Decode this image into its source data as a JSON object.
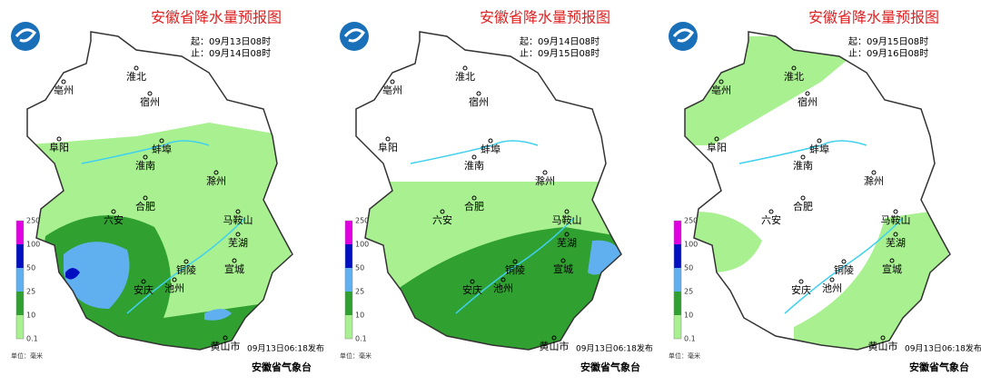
{
  "panels": [
    {
      "title": "安徽省降水量预报图",
      "start": "起：09月13日08时",
      "end": "止：09月14日08时",
      "cities": [
        "亳州",
        "淮北",
        "宿州",
        "阜阳",
        "蚌埠",
        "淮南",
        "滁州",
        "六安",
        "合肥",
        "马鞍山",
        "芜湖",
        "铜陵",
        "宣城",
        "安庆",
        "池州",
        "黄山市"
      ],
      "legend_ticks": [
        "250",
        "100",
        "50",
        "25",
        "10",
        "0.1"
      ],
      "unit": "单位：毫米",
      "issued": "09月13日06:18发布",
      "agency": "安徽省气象台"
    },
    {
      "title": "安徽省降水量预报图",
      "start": "起：09月14日08时",
      "end": "止：09月15日08时",
      "cities": [
        "亳州",
        "淮北",
        "宿州",
        "阜阳",
        "蚌埠",
        "淮南",
        "滁州",
        "六安",
        "合肥",
        "马鞍山",
        "芜湖",
        "铜陵",
        "宣城",
        "安庆",
        "池州",
        "黄山市"
      ],
      "legend_ticks": [
        "250",
        "100",
        "50",
        "25",
        "10",
        "0.1"
      ],
      "unit": "单位：毫米",
      "issued": "09月13日06:18发布",
      "agency": "安徽省气象台"
    },
    {
      "title": "安徽省降水量预报图",
      "start": "起：09月15日08时",
      "end": "止：09月16日08时",
      "cities": [
        "亳州",
        "淮北",
        "宿州",
        "阜阳",
        "蚌埠",
        "淮南",
        "滁州",
        "六安",
        "合肥",
        "马鞍山",
        "芜湖",
        "铜陵",
        "宣城",
        "安庆",
        "池州",
        "黄山市"
      ],
      "legend_ticks": [
        "250",
        "100",
        "50",
        "25",
        "10",
        "0.1"
      ],
      "unit": "单位：毫米",
      "issued": "09月13日06:18发布",
      "agency": "安徽省气象台"
    }
  ]
}
